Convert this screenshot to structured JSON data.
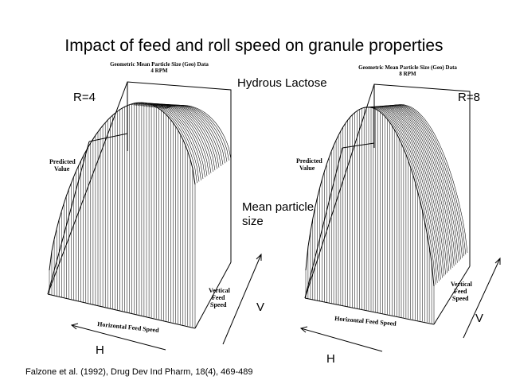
{
  "slide": {
    "title": "Impact of feed and roll speed on granule properties",
    "material": "Hydrous Lactose",
    "response_label_line1": "Mean particle",
    "response_label_line2": "size",
    "citation": "Falzone et al. (1992), Drug Dev Ind Pharm, 18(4), 469-489"
  },
  "plot_left": {
    "roll_label": "R=4",
    "header_line1": "Geometric Mean Particle Size (Geo) Data",
    "header_line2": "4 RPM",
    "z_axis_line1": "Predicted",
    "z_axis_line2": "Value",
    "x_axis": "Horizontal Feed Speed",
    "y_axis_line1": "Vertical",
    "y_axis_line2": "Feed",
    "y_axis_line3": "Speed",
    "h_arrow_label": "H",
    "v_arrow_label": "V"
  },
  "plot_right": {
    "roll_label": "R=8",
    "header_line1": "Geometric Mean Particle Size (Geo) Data",
    "header_line2": "8 RPM",
    "z_axis_line1": "Predicted",
    "z_axis_line2": "Value",
    "x_axis": "Horizontal Feed Speed",
    "y_axis_line1": "Vertical",
    "y_axis_line2": "Feed",
    "y_axis_line3": "Speed",
    "h_arrow_label": "H",
    "v_arrow_label": "V"
  }
}
